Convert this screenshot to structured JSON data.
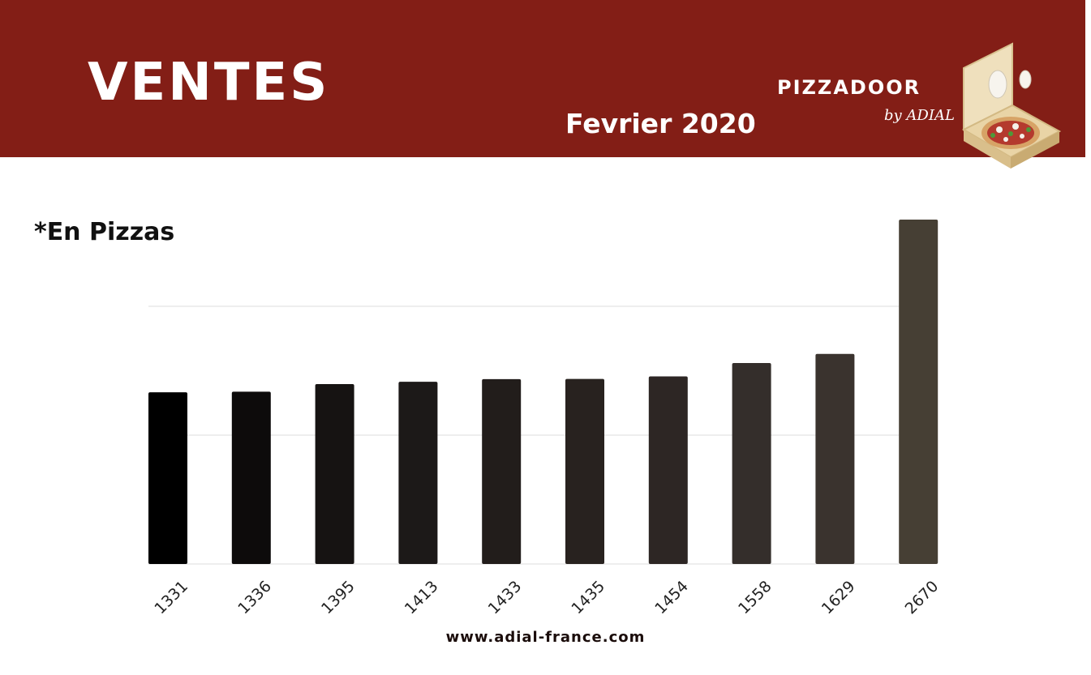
{
  "header": {
    "title": "VENTES",
    "period": "Fevrier 2020",
    "brand_main": "PIZZADOOR",
    "brand_sub": "by ADIAL",
    "bg_color": "#831e16"
  },
  "unit_label": "*En Pizzas",
  "footer": {
    "website": "www.adial-france.com"
  },
  "chart_data": {
    "type": "bar",
    "title": "",
    "xlabel": "",
    "ylabel": "",
    "categories": [
      "1331",
      "1336",
      "1395",
      "1413",
      "1433",
      "1435",
      "1454",
      "1558",
      "1629",
      "2670"
    ],
    "values": [
      1331,
      1336,
      1395,
      1413,
      1433,
      1435,
      1454,
      1558,
      1629,
      2670
    ],
    "ylim": [
      0,
      2670
    ],
    "grid": true,
    "colors": [
      "#000000",
      "#0d0b0b",
      "#161312",
      "#1c1918",
      "#221d1b",
      "#28221f",
      "#2d2624",
      "#342e2b",
      "#3a332e",
      "#463f34"
    ]
  }
}
